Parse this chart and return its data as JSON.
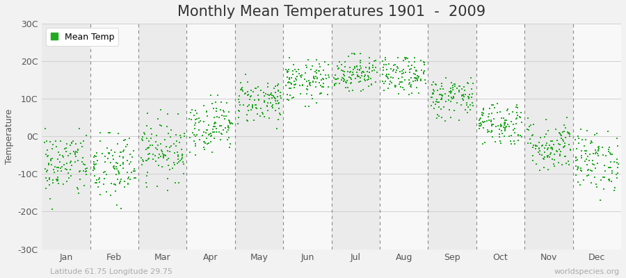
{
  "title": "Monthly Mean Temperatures 1901  -  2009",
  "ylabel": "Temperature",
  "xlabel_labels": [
    "Jan",
    "Feb",
    "Mar",
    "Apr",
    "May",
    "Jun",
    "Jul",
    "Aug",
    "Sep",
    "Oct",
    "Nov",
    "Dec"
  ],
  "ytick_labels": [
    "-30C",
    "-20C",
    "-10C",
    "0C",
    "10C",
    "20C",
    "30C"
  ],
  "ytick_values": [
    -30,
    -20,
    -10,
    0,
    10,
    20,
    30
  ],
  "ylim": [
    -30,
    30
  ],
  "dot_color": "#22aa22",
  "dot_size": 2.5,
  "bg_color": "#f2f2f2",
  "band_colors": [
    "#ebebeb",
    "#f8f8f8"
  ],
  "grid_color": "#d0d0d0",
  "dashed_line_color": "#888888",
  "legend_label": "Mean Temp",
  "footer_left": "Latitude 61.75 Longitude 29.75",
  "footer_right": "worldspecies.org",
  "title_fontsize": 15,
  "axis_fontsize": 9,
  "footer_fontsize": 8,
  "monthly_means": [
    -7.5,
    -8.5,
    -3.5,
    3.0,
    9.5,
    14.5,
    17.0,
    16.0,
    10.5,
    3.5,
    -2.5,
    -6.5
  ],
  "monthly_stds": [
    4.5,
    5.0,
    4.0,
    3.5,
    3.0,
    2.8,
    2.5,
    2.5,
    2.8,
    3.0,
    3.5,
    4.0
  ],
  "monthly_mins": [
    -23,
    -24,
    -15,
    -5,
    2,
    8,
    12,
    11,
    4,
    -2,
    -9,
    -17
  ],
  "monthly_maxs": [
    2,
    1,
    7,
    11,
    18,
    21,
    22,
    21,
    17,
    11,
    5,
    2
  ],
  "n_years": 109,
  "seed": 42
}
